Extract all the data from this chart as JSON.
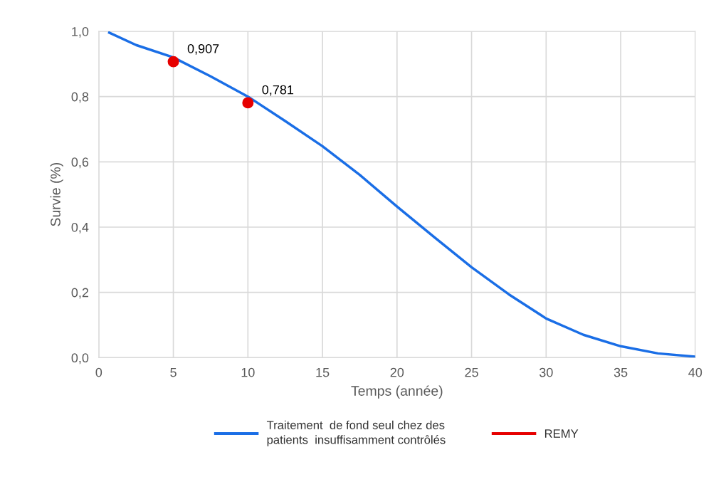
{
  "chart_data": {
    "type": "line",
    "xlabel": "Temps (année)",
    "ylabel": "Survie (%)",
    "xlim": [
      0,
      40
    ],
    "xticks": [
      0,
      5,
      10,
      15,
      20,
      25,
      30,
      35,
      40
    ],
    "ylim": [
      0,
      1
    ],
    "yticks": [
      {
        "value": 0,
        "label": "0,0"
      },
      {
        "value": 0.2,
        "label": "0,2"
      },
      {
        "value": 0.4,
        "label": "0,4"
      },
      {
        "value": 0.6,
        "label": "0,6"
      },
      {
        "value": 0.8,
        "label": "0,8"
      },
      {
        "value": 1,
        "label": "1,0"
      }
    ],
    "grid": true,
    "legend": "bottom",
    "marker": "none",
    "line_style": "solid",
    "series": [
      {
        "name": "Traitement  de fond seul chez des\npatients  insuffisamment contrôlés",
        "color": "#1a6ee6",
        "x": [
          0.7,
          2.5,
          5,
          7.5,
          10,
          12.5,
          15,
          17.5,
          20,
          22.5,
          25,
          27.5,
          30,
          32.5,
          35,
          37.5,
          40
        ],
        "values": [
          0.996,
          0.958,
          0.92,
          0.862,
          0.8,
          0.725,
          0.648,
          0.56,
          0.463,
          0.369,
          0.277,
          0.194,
          0.12,
          0.07,
          0.035,
          0.013,
          0.003
        ]
      },
      {
        "name": "REMY",
        "color": "#e60000",
        "type": "scatter",
        "marker": "circle",
        "x": [
          5,
          10
        ],
        "values": [
          0.907,
          0.781
        ],
        "value_labels": [
          "0,907",
          "0,781"
        ]
      }
    ]
  }
}
